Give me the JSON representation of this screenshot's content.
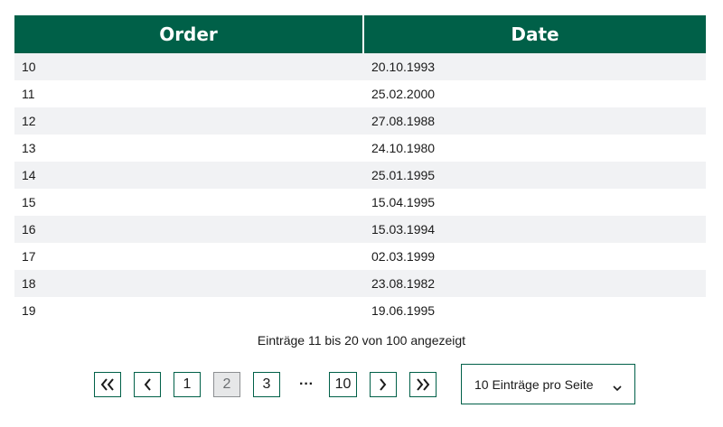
{
  "table": {
    "columns": [
      "Order",
      "Date"
    ],
    "rows": [
      {
        "order": "10",
        "date": "20.10.1993"
      },
      {
        "order": "11",
        "date": "25.02.2000"
      },
      {
        "order": "12",
        "date": "27.08.1988"
      },
      {
        "order": "13",
        "date": "24.10.1980"
      },
      {
        "order": "14",
        "date": "25.01.1995"
      },
      {
        "order": "15",
        "date": "15.04.1995"
      },
      {
        "order": "16",
        "date": "15.03.1994"
      },
      {
        "order": "17",
        "date": "02.03.1999"
      },
      {
        "order": "18",
        "date": "23.08.1982"
      },
      {
        "order": "19",
        "date": "19.06.1995"
      }
    ]
  },
  "status_text": "Einträge 11 bis 20 von 100 angezeigt",
  "pagination": {
    "first_icon": "double-chevron-left-icon",
    "prev_icon": "chevron-left-icon",
    "pages": [
      "1",
      "2",
      "3"
    ],
    "current_page": "2",
    "ellipsis": "···",
    "last_page": "10",
    "next_icon": "chevron-right-icon",
    "last_icon": "double-chevron-right-icon"
  },
  "page_size_select": {
    "value": "10 Einträge pro Seite",
    "icon": "chevron-down-icon"
  },
  "colors": {
    "header_bg": "#006048",
    "border": "#006048",
    "row_alt": "#f1f2f4"
  }
}
